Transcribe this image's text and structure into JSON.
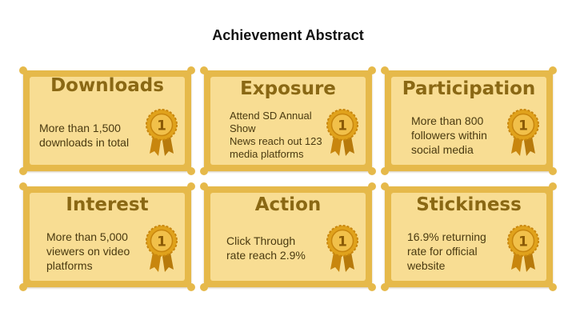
{
  "slide": {
    "title": "Achievement Abstract"
  },
  "colors": {
    "card_border": "#e6b94a",
    "card_fill": "#f8dd93",
    "title_text": "#8a6814",
    "body_text": "#4a3a10",
    "medal_gold": "#e0a21c",
    "medal_dark": "#b77a0c"
  },
  "icon": "award-medal-number-one-icon",
  "medal_number": "1",
  "cards": [
    {
      "title": "Downloads",
      "lines": [
        "More than 1,500",
        "downloads in total"
      ]
    },
    {
      "title": "Exposure",
      "lines": [
        "Attend SD Annual",
        "Show",
        "News reach out 123",
        "media platforms"
      ]
    },
    {
      "title": "Participation",
      "lines": [
        "More than 800",
        "followers within",
        "social media"
      ]
    },
    {
      "title": "Interest",
      "lines": [
        "More than 5,000",
        "viewers on video",
        "platforms"
      ]
    },
    {
      "title": "Action",
      "lines": [
        "Click Through",
        "rate reach 2.9%"
      ]
    },
    {
      "title": "Stickiness",
      "lines": [
        "16.9% returning",
        "rate for official",
        "website"
      ]
    }
  ]
}
